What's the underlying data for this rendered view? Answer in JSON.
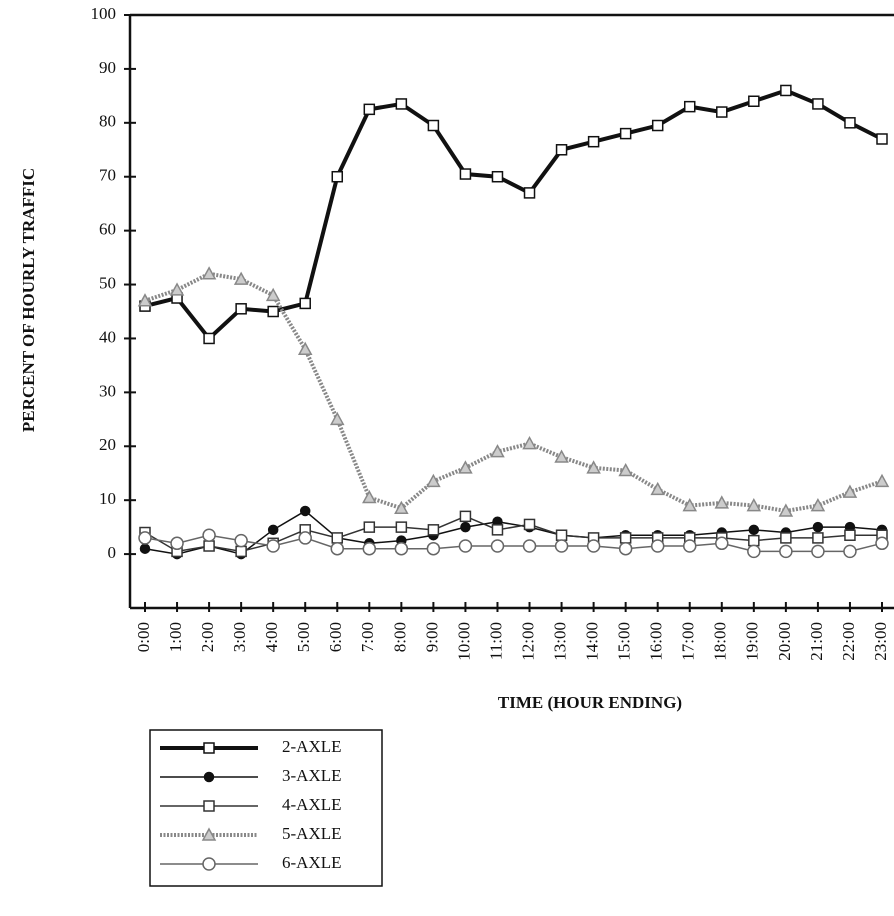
{
  "chart_data": {
    "type": "line",
    "y_label": "PERCENT OF HOURLY TRAFFIC",
    "x_label": "TIME (HOUR ENDING)",
    "categories": [
      "0:00",
      "1:00",
      "2:00",
      "3:00",
      "4:00",
      "5:00",
      "6:00",
      "7:00",
      "8:00",
      "9:00",
      "10:00",
      "11:00",
      "12:00",
      "13:00",
      "14:00",
      "15:00",
      "16:00",
      "17:00",
      "18:00",
      "19:00",
      "20:00",
      "21:00",
      "22:00",
      "23:00"
    ],
    "series": [
      {
        "name": "2-AXLE",
        "color": "#111111",
        "marker": "square",
        "dash": false,
        "width": 4,
        "values": [
          46,
          47.5,
          40,
          45.5,
          45,
          46.5,
          70,
          82.5,
          83.5,
          79.5,
          70.5,
          70,
          67,
          75,
          76.5,
          78,
          79.5,
          83,
          82,
          84,
          86,
          83.5,
          80,
          77
        ]
      },
      {
        "name": "3-AXLE",
        "color": "#111111",
        "marker": "diamond",
        "dash": false,
        "width": 1.5,
        "values": [
          1,
          0,
          1.5,
          0,
          4.5,
          8,
          3,
          2,
          2.5,
          3.5,
          5,
          6,
          5,
          3.5,
          3,
          3.5,
          3.5,
          3.5,
          4,
          4.5,
          4,
          5,
          5,
          4.5
        ]
      },
      {
        "name": "4-AXLE",
        "color": "#333333",
        "marker": "square",
        "dash": false,
        "width": 1.5,
        "values": [
          4,
          0.5,
          1.5,
          0.5,
          2,
          4.5,
          3,
          5,
          5,
          4.5,
          7,
          4.5,
          5.5,
          3.5,
          3,
          3,
          3,
          3,
          3,
          2.5,
          3,
          3,
          3.5,
          3.5
        ]
      },
      {
        "name": "5-AXLE",
        "color": "#888888",
        "marker": "triangle",
        "dash": true,
        "width": 4,
        "values": [
          47,
          49,
          52,
          51,
          48,
          38,
          25,
          10.5,
          8.5,
          13.5,
          16,
          19,
          20.5,
          18,
          16,
          15.5,
          12,
          9,
          9.5,
          9,
          8,
          9,
          11.5,
          13.5
        ]
      },
      {
        "name": "6-AXLE",
        "color": "#666666",
        "marker": "circle",
        "dash": false,
        "width": 1.5,
        "values": [
          3,
          2,
          3.5,
          2.5,
          1.5,
          3,
          1,
          1,
          1,
          1,
          1.5,
          1.5,
          1.5,
          1.5,
          1.5,
          1,
          1.5,
          1.5,
          2,
          0.5,
          0.5,
          0.5,
          0.5,
          2
        ]
      }
    ],
    "ylim": [
      -10,
      100
    ],
    "yticks": [
      0,
      10,
      20,
      30,
      40,
      50,
      60,
      70,
      80,
      90,
      100
    ]
  }
}
